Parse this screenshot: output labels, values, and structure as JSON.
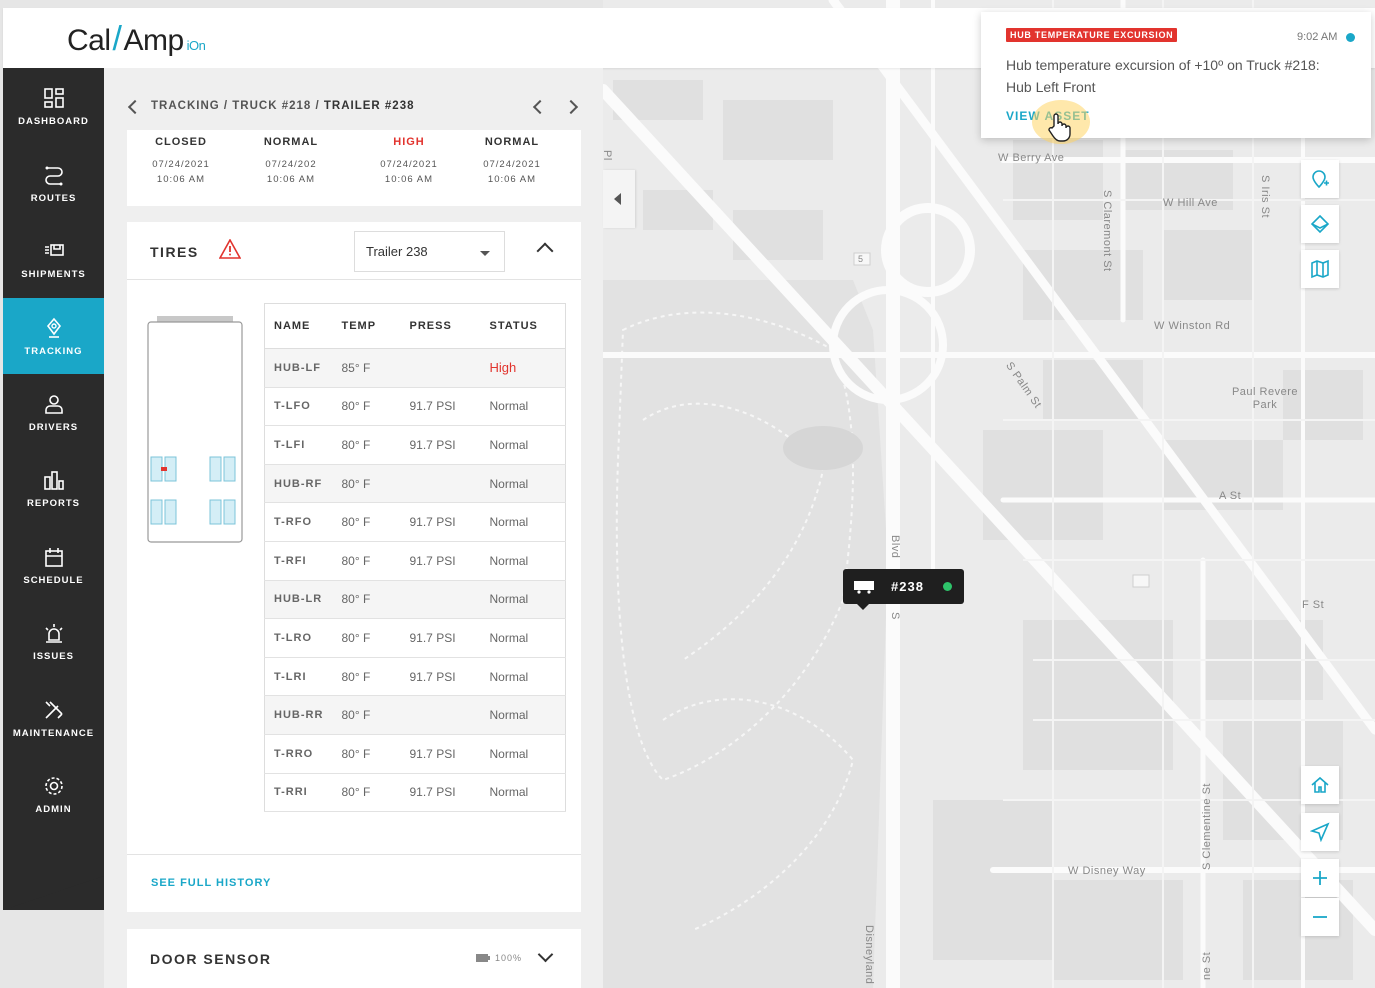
{
  "app": {
    "logo": {
      "part1": "Cal",
      "part2": "Amp",
      "suffix": "iOn"
    }
  },
  "sidebar": {
    "items": [
      {
        "label": "DASHBOARD",
        "icon": "grid-icon"
      },
      {
        "label": "ROUTES",
        "icon": "routes-icon"
      },
      {
        "label": "SHIPMENTS",
        "icon": "shipments-icon"
      },
      {
        "label": "TRACKING",
        "icon": "tracking-pin-icon",
        "active": true
      },
      {
        "label": "DRIVERS",
        "icon": "driver-person-icon"
      },
      {
        "label": "REPORTS",
        "icon": "reports-bars-icon"
      },
      {
        "label": "SCHEDULE",
        "icon": "calendar-icon"
      },
      {
        "label": "ISSUES",
        "icon": "alarm-light-icon"
      },
      {
        "label": "MAINTENANCE",
        "icon": "tools-icon"
      },
      {
        "label": "ADMIN",
        "icon": "gear-icon"
      }
    ]
  },
  "breadcrumb": {
    "trail": "TRACKING / TRUCK #218 / ",
    "current": "TRAILER #238"
  },
  "status_row": [
    {
      "status": "CLOSED",
      "date": "07/24/2021",
      "time": "10:06 AM",
      "high": false
    },
    {
      "status": "NORMAL",
      "date": "07/24/202",
      "time": "10:06 AM",
      "high": false
    },
    {
      "status": "HIGH",
      "date": "07/24/2021",
      "time": "10:06 AM",
      "high": true
    },
    {
      "status": "NORMAL",
      "date": "07/24/2021",
      "time": "10:06 AM",
      "high": false
    }
  ],
  "tires": {
    "title": "TIRES",
    "selected_trailer": "Trailer 238",
    "columns": [
      "NAME",
      "TEMP",
      "PRESS",
      "STATUS"
    ],
    "rows": [
      {
        "name": "HUB-LF",
        "temp": "85° F",
        "press": "",
        "status": "High",
        "hub": true
      },
      {
        "name": "T-LFO",
        "temp": "80° F",
        "press": "91.7 PSI",
        "status": "Normal",
        "hub": false
      },
      {
        "name": "T-LFI",
        "temp": "80° F",
        "press": "91.7 PSI",
        "status": "Normal",
        "hub": false
      },
      {
        "name": "HUB-RF",
        "temp": "80° F",
        "press": "",
        "status": "Normal",
        "hub": true
      },
      {
        "name": "T-RFO",
        "temp": "80° F",
        "press": "91.7 PSI",
        "status": "Normal",
        "hub": false
      },
      {
        "name": "T-RFI",
        "temp": "80° F",
        "press": "91.7 PSI",
        "status": "Normal",
        "hub": false
      },
      {
        "name": "HUB-LR",
        "temp": "80° F",
        "press": "",
        "status": "Normal",
        "hub": true
      },
      {
        "name": "T-LRO",
        "temp": "80° F",
        "press": "91.7 PSI",
        "status": "Normal",
        "hub": false
      },
      {
        "name": "T-LRI",
        "temp": "80° F",
        "press": "91.7 PSI",
        "status": "Normal",
        "hub": false
      },
      {
        "name": "HUB-RR",
        "temp": "80° F",
        "press": "",
        "status": "Normal",
        "hub": true
      },
      {
        "name": "T-RRO",
        "temp": "80° F",
        "press": "91.7 PSI",
        "status": "Normal",
        "hub": false
      },
      {
        "name": "T-RRI",
        "temp": "80° F",
        "press": "91.7 PSI",
        "status": "Normal",
        "hub": false
      }
    ],
    "history_link": "SEE FULL HISTORY"
  },
  "door_sensor": {
    "title": "DOOR SENSOR",
    "battery": "100%"
  },
  "map": {
    "marker_label": "#238",
    "street_labels": [
      "W Berry Ave",
      "S Claremont St",
      "W Hill Ave",
      "S Iris St",
      "W Winston Rd",
      "S Palm St",
      "Paul Revere Park",
      "A St",
      "F St",
      "W Disney Way",
      "S Clementine St",
      "Blvd",
      "S",
      "Disneyland",
      "5",
      "Pl",
      "ne St"
    ]
  },
  "notification": {
    "badge": "HUB TEMPERATURE EXCURSION",
    "time": "9:02 AM",
    "message": "Hub temperature excursion of +10º on Truck #218: Hub Left Front",
    "link": "VIEW ASSET"
  },
  "colors": {
    "accent": "#1aa7c8",
    "alert": "#e2342e",
    "sidebar": "#2b2b2b",
    "online": "#2ec36a"
  }
}
